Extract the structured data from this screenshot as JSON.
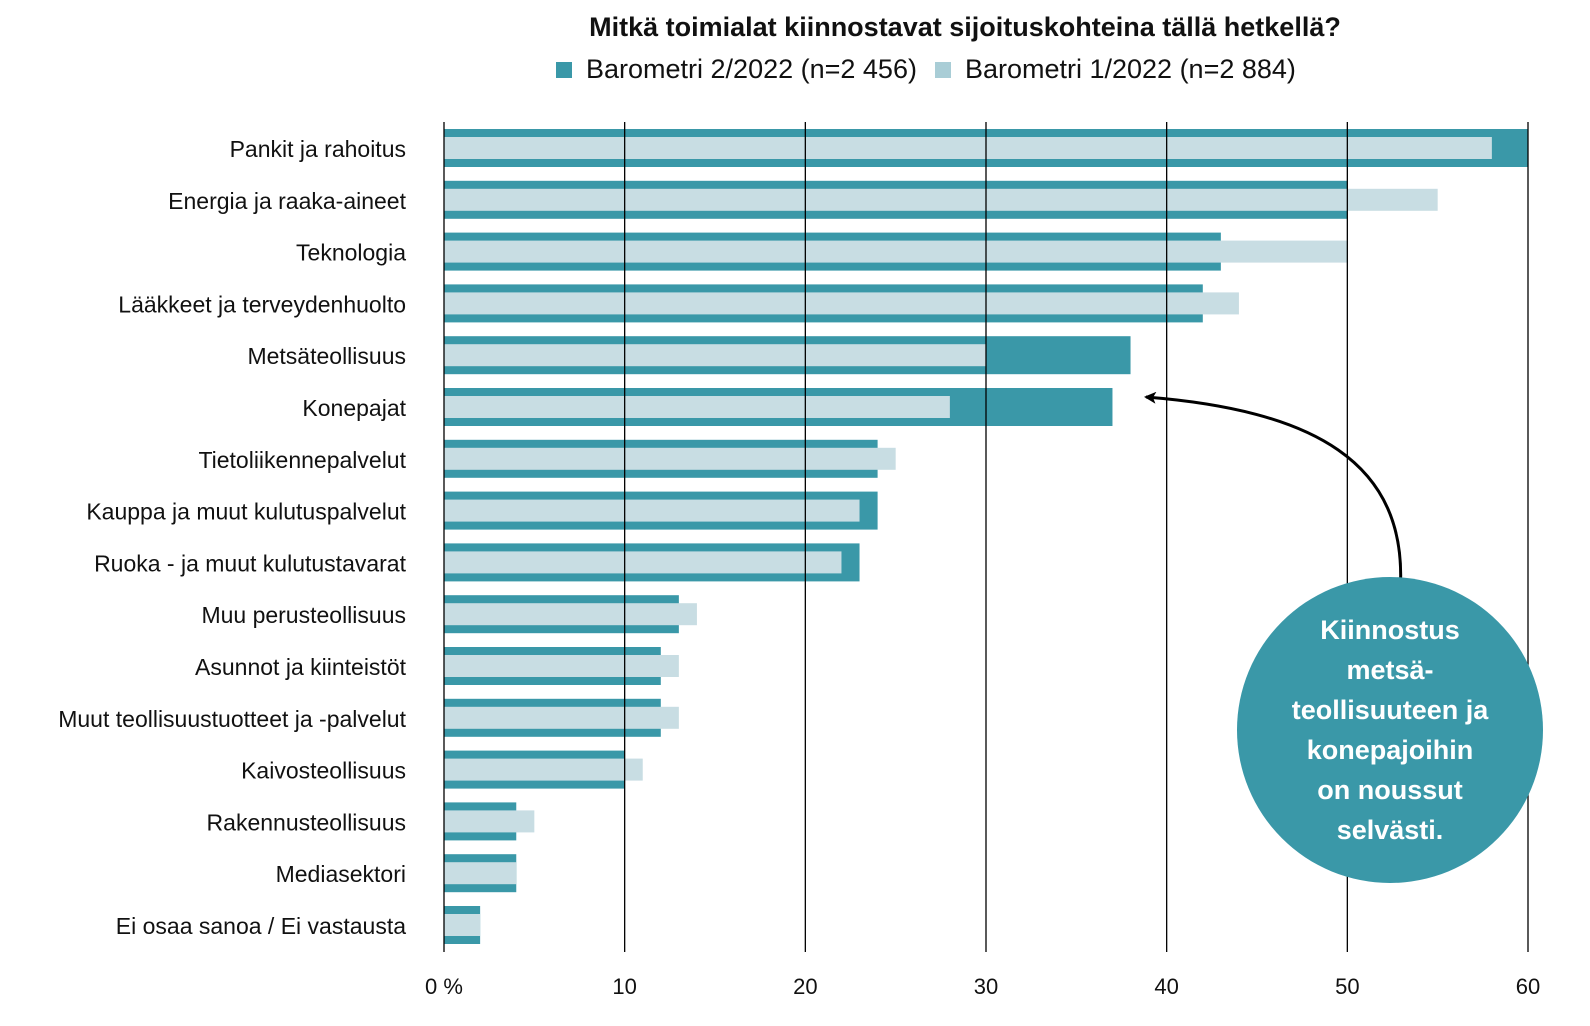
{
  "chart_data": {
    "type": "bar",
    "title": "Mitkä toimialat kiinnostavat sijoituskohteina tällä hetkellä?",
    "categories": [
      "Pankit ja rahoitus",
      "Energia ja raaka-aineet",
      "Teknologia",
      "Lääkkeet ja terveydenhuolto",
      "Metsäteollisuus",
      "Konepajat",
      "Tietoliikennepalvelut",
      "Kauppa ja muut kulutuspalvelut",
      "Ruoka - ja muut kulutustavarat",
      "Muu perusteollisuus",
      "Asunnot ja kiinteistöt",
      "Muut teollisuustuotteet ja -palvelut",
      "Kaivosteollisuus",
      "Rakennusteollisuus",
      "Mediasektori",
      "Ei osaa sanoa / Ei vastausta"
    ],
    "series": [
      {
        "name": "Barometri 2/2022 (n=2 456)",
        "color": "#3a98a8",
        "values": [
          60,
          50,
          43,
          42,
          38,
          37,
          24,
          24,
          23,
          13,
          12,
          12,
          10,
          4,
          4,
          2
        ]
      },
      {
        "name": "Barometri 1/2022 (n=2 884)",
        "color": "#c8dde3",
        "values": [
          58,
          55,
          50,
          44,
          30,
          28,
          25,
          23,
          22,
          14,
          13,
          13,
          11,
          5,
          4,
          2
        ]
      }
    ],
    "xlim": [
      0,
      60
    ],
    "xticks": [
      "0 %",
      "10",
      "20",
      "30",
      "40",
      "50",
      "60"
    ],
    "orientation": "horizontal",
    "grid": true,
    "legend": "top",
    "annotation": {
      "text": "Kiinnostus\nmetsä-\nteollisuuteen ja\nkonepajoihin\non noussut\nselvästi.",
      "color": "#3a98a8"
    }
  }
}
